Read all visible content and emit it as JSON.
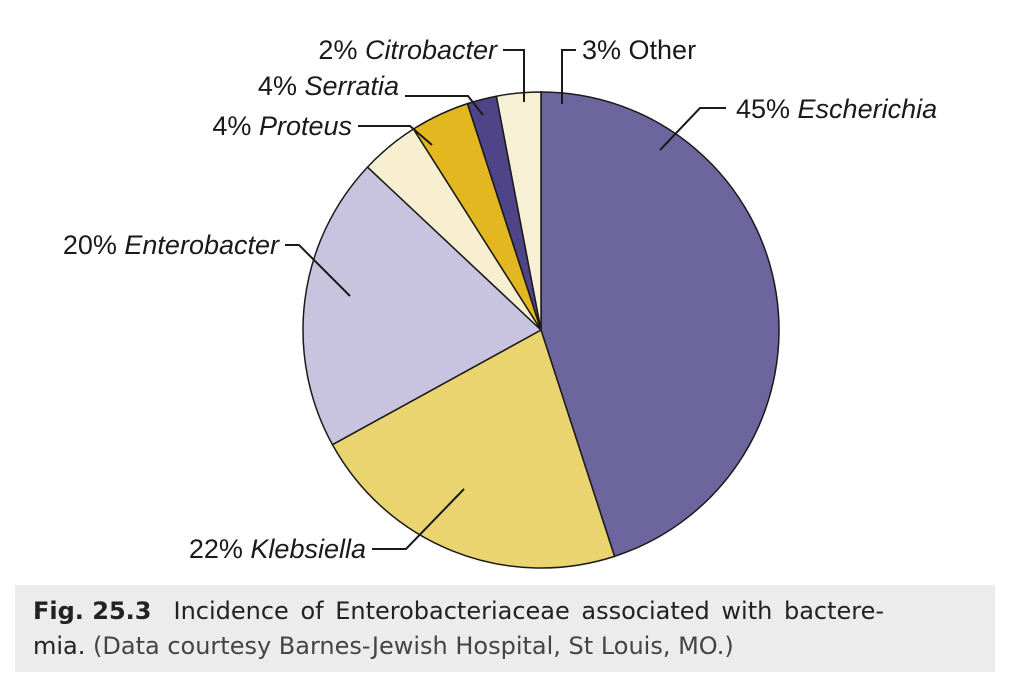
{
  "chart_data": {
    "type": "pie",
    "slices": [
      {
        "label": "45% Escherichia",
        "pct": "45%",
        "name": "Escherichia",
        "value": 45,
        "color": "#6d659d"
      },
      {
        "label": "22% Klebsiella",
        "pct": "22%",
        "name": "Klebsiella",
        "value": 22,
        "color": "#e9d46f"
      },
      {
        "label": "20% Enterobacter",
        "pct": "20%",
        "name": "Enterobacter",
        "value": 20,
        "color": "#c8c4df"
      },
      {
        "label": "4% Proteus",
        "pct": "4%",
        "name": "Proteus",
        "value": 4,
        "color": "#f7efcf"
      },
      {
        "label": "4% Serratia",
        "pct": "4%",
        "name": "Serratia",
        "value": 4,
        "color": "#e3b71f"
      },
      {
        "label": "2% Citrobacter",
        "pct": "2%",
        "name": "Citrobacter",
        "value": 2,
        "color": "#4e4487"
      },
      {
        "label": "3% Other",
        "pct": "3%",
        "name": "Other",
        "value": 3,
        "color": "#f8f0d4"
      }
    ]
  },
  "caption": {
    "fig_number": "Fig. 25.3",
    "text": "Incidence of Enterobacteriaceae associated with bactere-",
    "text_line2": "mia.",
    "note": "(Data courtesy Barnes-Jewish Hospital, St Louis, MO.)"
  }
}
